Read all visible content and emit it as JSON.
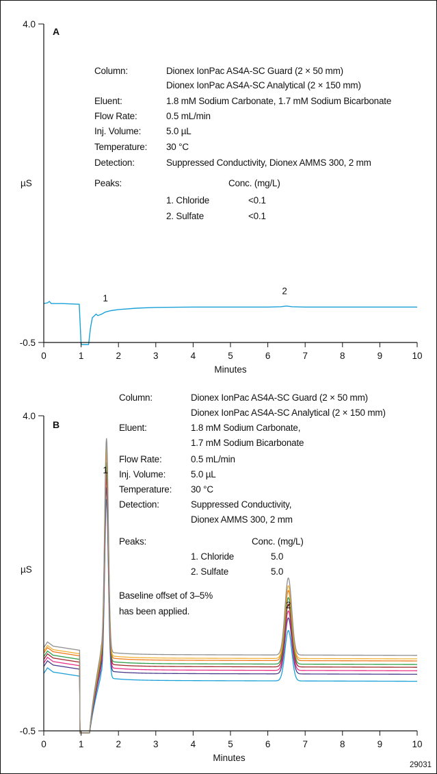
{
  "chart_data": [
    {
      "type": "line",
      "panel": "A",
      "xlabel": "Minutes",
      "ylabel": "µS",
      "xlim": [
        0,
        10
      ],
      "ylim": [
        -0.5,
        4.0
      ],
      "x_ticks": [
        "0",
        "1",
        "2",
        "3",
        "4",
        "5",
        "6",
        "7",
        "8",
        "9",
        "10"
      ],
      "y_ticks": [
        "4.0",
        "-0.5"
      ],
      "conditions": [
        {
          "label": "Column:",
          "lines": [
            "Dionex IonPac AS4A-SC Guard (2 × 50 mm)",
            "Dionex IonPac AS4A-SC Analytical (2 × 150 mm)"
          ]
        },
        {
          "label": "Eluent:",
          "lines": [
            "1.8 mM Sodium Carbonate, 1.7 mM Sodium Bicarbonate"
          ]
        },
        {
          "label": "Flow Rate:",
          "lines": [
            "0.5 mL/min"
          ]
        },
        {
          "label": "Inj. Volume:",
          "lines": [
            "5.0 µL"
          ]
        },
        {
          "label": "Temperature:",
          "lines": [
            "30 °C"
          ]
        },
        {
          "label": "Detection:",
          "lines": [
            "Suppressed Conductivity, Dionex AMMS 300, 2 mm"
          ]
        }
      ],
      "peaks_label": "Peaks:",
      "conc_header": "Conc. (mg/L)",
      "peaks": [
        {
          "name": "1. Chloride",
          "conc": "<0.1"
        },
        {
          "name": "2. Sulfate",
          "conc": "<0.1"
        }
      ],
      "peak_labels": [
        {
          "text": "1",
          "x": 1.65,
          "y": 0.08
        },
        {
          "text": "2",
          "x": 6.45,
          "y": 0.18
        }
      ],
      "series": [
        {
          "color": "#1aa0d8",
          "points": [
            [
              0,
              0.05
            ],
            [
              0.1,
              0.06
            ],
            [
              0.15,
              0.08
            ],
            [
              0.2,
              0.05
            ],
            [
              0.5,
              0.05
            ],
            [
              0.95,
              0.04
            ],
            [
              0.98,
              -0.3
            ],
            [
              1.0,
              -0.6
            ],
            [
              1.2,
              -0.6
            ],
            [
              1.25,
              -0.3
            ],
            [
              1.3,
              -0.15
            ],
            [
              1.4,
              -0.1
            ],
            [
              1.45,
              -0.12
            ],
            [
              1.55,
              -0.1
            ],
            [
              1.65,
              -0.07
            ],
            [
              1.8,
              -0.05
            ],
            [
              2.0,
              -0.035
            ],
            [
              2.5,
              -0.015
            ],
            [
              3,
              -0.005
            ],
            [
              4,
              0.0
            ],
            [
              5,
              0.0
            ],
            [
              6,
              0.0
            ],
            [
              6.35,
              0.005
            ],
            [
              6.5,
              0.015
            ],
            [
              6.65,
              0.005
            ],
            [
              7,
              0.0
            ],
            [
              8,
              0.0
            ],
            [
              9,
              0.0
            ],
            [
              10,
              0.0
            ]
          ]
        }
      ]
    },
    {
      "type": "line",
      "panel": "B",
      "xlabel": "Minutes",
      "ylabel": "µS",
      "xlim": [
        0,
        10
      ],
      "ylim": [
        -0.5,
        4.0
      ],
      "x_ticks": [
        "0",
        "1",
        "2",
        "3",
        "4",
        "5",
        "6",
        "7",
        "8",
        "9",
        "10"
      ],
      "y_ticks": [
        "4.0",
        "-0.5"
      ],
      "conditions": [
        {
          "label": "Column:",
          "lines": [
            "Dionex IonPac AS4A-SC Guard (2 × 50 mm)",
            "Dionex IonPac AS4A-SC Analytical (2 × 150 mm)"
          ]
        },
        {
          "label": "Eluent:",
          "lines": [
            "1.8 mM Sodium Carbonate,",
            "1.7 mM Sodium Bicarbonate"
          ]
        },
        {
          "label": "Flow Rate:",
          "lines": [
            "0.5 mL/min"
          ]
        },
        {
          "label": "Inj. Volume:",
          "lines": [
            "5.0 µL"
          ]
        },
        {
          "label": "Temperature:",
          "lines": [
            "30 °C"
          ]
        },
        {
          "label": "Detection:",
          "lines": [
            "Suppressed Conductivity,",
            "Dionex AMMS 300, 2 mm"
          ]
        }
      ],
      "peaks_label": "Peaks:",
      "conc_header": "Conc. (mg/L)",
      "peaks": [
        {
          "name": "1. Chloride",
          "conc": "5.0"
        },
        {
          "name": "2. Sulfate",
          "conc": "5.0"
        }
      ],
      "note": [
        "Baseline offset of 3–5%",
        "has been applied."
      ],
      "peak_labels": [
        {
          "text": "1",
          "x": 1.65,
          "y": 3.18
        },
        {
          "text": "2",
          "x": 6.55,
          "y": 1.25
        }
      ],
      "series_shape": {
        "peak1": {
          "rt": 1.68,
          "sigma": 0.05
        },
        "peak2": {
          "rt": 6.55,
          "sigma": 0.09
        },
        "dip": {
          "start": 0.97,
          "end": 1.22,
          "min": -0.6
        }
      },
      "series": [
        {
          "color": "#1aa0d8",
          "baseline": 0.22,
          "peak1": 2.55,
          "peak2": 0.72
        },
        {
          "color": "#4a3a8c",
          "baseline": 0.32,
          "peak1": 2.62,
          "peak2": 0.8
        },
        {
          "color": "#e8308a",
          "baseline": 0.37,
          "peak1": 2.7,
          "peak2": 0.85
        },
        {
          "color": "#a0282e",
          "baseline": 0.42,
          "peak1": 2.76,
          "peak2": 0.9
        },
        {
          "color": "#2e9e48",
          "baseline": 0.46,
          "peak1": 2.84,
          "peak2": 0.95
        },
        {
          "color": "#ef7a1a",
          "baseline": 0.51,
          "peak1": 2.92,
          "peak2": 1.0
        },
        {
          "color": "#f2b134",
          "baseline": 0.54,
          "peak1": 2.98,
          "peak2": 1.04
        },
        {
          "color": "#8f8f8f",
          "baseline": 0.59,
          "peak1": 3.05,
          "peak2": 1.1
        }
      ]
    }
  ],
  "figure_number": "29031"
}
